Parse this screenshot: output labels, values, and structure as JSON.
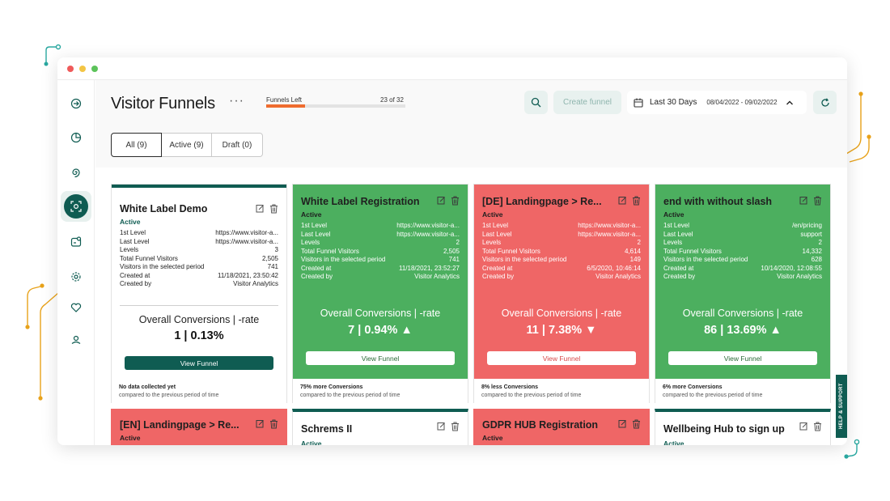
{
  "window": {
    "controls": [
      "close",
      "minimize",
      "maximize"
    ]
  },
  "sidebar": {
    "items": [
      {
        "icon": "arrow-circle-icon"
      },
      {
        "icon": "pie-chart-icon"
      },
      {
        "icon": "spiral-icon"
      },
      {
        "icon": "funnel-scan-icon",
        "active": true
      },
      {
        "icon": "badge-icon"
      },
      {
        "icon": "settings-icon"
      },
      {
        "icon": "heart-icon"
      },
      {
        "icon": "location-icon"
      }
    ]
  },
  "header": {
    "title": "Visitor Funnels",
    "more": "···",
    "funnels_left_label": "Funnels Left",
    "funnels_left_count": "23 of 32",
    "funnels_left_fraction": 0.28,
    "create_button": "Create funnel",
    "date_label": "Last 30 Days",
    "date_range": "08/04/2022 - 09/02/2022"
  },
  "tabs": [
    {
      "label": "All (9)",
      "active": true
    },
    {
      "label": "Active (9)"
    },
    {
      "label": "Draft (0)"
    }
  ],
  "cards": [
    {
      "style": "white",
      "title": "White Label Demo",
      "status": "Active",
      "rows": [
        {
          "k": "1st Level",
          "v": "https://www.visitor-a..."
        },
        {
          "k": "Last Level",
          "v": "https://www.visitor-a..."
        },
        {
          "k": "Levels",
          "v": "3"
        },
        {
          "k": "Total Funnel Visitors",
          "v": "2,505"
        },
        {
          "k": "Visitors in the selected period",
          "v": "741"
        },
        {
          "k": "Created at",
          "v": "11/18/2021, 23:50:42"
        },
        {
          "k": "Created by",
          "v": "Visitor Analytics"
        }
      ],
      "conv_title": "Overall Conversions | -rate",
      "conv_value": "1 | 0.13%",
      "view_button": "View Funnel",
      "footer_title": "No data collected yet",
      "footer_sub": "compared to the previous period of time"
    },
    {
      "style": "green",
      "title": "White Label Registration",
      "status": "Active",
      "rows": [
        {
          "k": "1st Level",
          "v": "https://www.visitor-a..."
        },
        {
          "k": "Last Level",
          "v": "https://www.visitor-a..."
        },
        {
          "k": "Levels",
          "v": "2"
        },
        {
          "k": "Total Funnel Visitors",
          "v": "2,505"
        },
        {
          "k": "Visitors in the selected period",
          "v": "741"
        },
        {
          "k": "Created at",
          "v": "11/18/2021, 23:52:27"
        },
        {
          "k": "Created by",
          "v": "Visitor Analytics"
        }
      ],
      "conv_title": "Overall Conversions | -rate",
      "conv_value": "7 | 0.94% ▲",
      "view_button": "View Funnel",
      "footer_title": "75% more Conversions",
      "footer_sub": "compared to the previous period of time"
    },
    {
      "style": "red",
      "title": "[DE] Landingpage > Re...",
      "status": "Active",
      "rows": [
        {
          "k": "1st Level",
          "v": "https://www.visitor-a..."
        },
        {
          "k": "Last Level",
          "v": "https://www.visitor-a..."
        },
        {
          "k": "Levels",
          "v": "2"
        },
        {
          "k": "Total Funnel Visitors",
          "v": "4,614"
        },
        {
          "k": "Visitors in the selected period",
          "v": "149"
        },
        {
          "k": "Created at",
          "v": "6/5/2020, 10:46:14"
        },
        {
          "k": "Created by",
          "v": "Visitor Analytics"
        }
      ],
      "conv_title": "Overall Conversions | -rate",
      "conv_value": "11 | 7.38% ▼",
      "view_button": "View Funnel",
      "footer_title": "8% less Conversions",
      "footer_sub": "compared to the previous period of time"
    },
    {
      "style": "green",
      "title": "end with without slash",
      "status": "Active",
      "rows": [
        {
          "k": "1st Level",
          "v": "/en/pricing"
        },
        {
          "k": "Last Level",
          "v": "support"
        },
        {
          "k": "Levels",
          "v": "2"
        },
        {
          "k": "Total Funnel Visitors",
          "v": "14,332"
        },
        {
          "k": "Visitors in the selected period",
          "v": "628"
        },
        {
          "k": "Created at",
          "v": "10/14/2020, 12:08:55"
        },
        {
          "k": "Created by",
          "v": "Visitor Analytics"
        }
      ],
      "conv_title": "Overall Conversions | -rate",
      "conv_value": "86 | 13.69% ▲",
      "view_button": "View Funnel",
      "footer_title": "6% more Conversions",
      "footer_sub": "compared to the previous period of time"
    }
  ],
  "lower_cards": [
    {
      "style": "red",
      "title": "[EN] Landingpage > Re...",
      "status": "Active"
    },
    {
      "style": "white",
      "title": "Schrems II",
      "status": "Active"
    },
    {
      "style": "red",
      "title": "GDPR HUB Registration",
      "status": "Active"
    },
    {
      "style": "white",
      "title": "Wellbeing Hub to sign up",
      "status": "Active"
    }
  ],
  "help_tab": "HELP & SUPPORT",
  "colors": {
    "brand": "#0f5c52",
    "green": "#4caf5f",
    "red": "#ef6666",
    "progress": "#ef6c2f",
    "deco": "#e8a21a"
  }
}
